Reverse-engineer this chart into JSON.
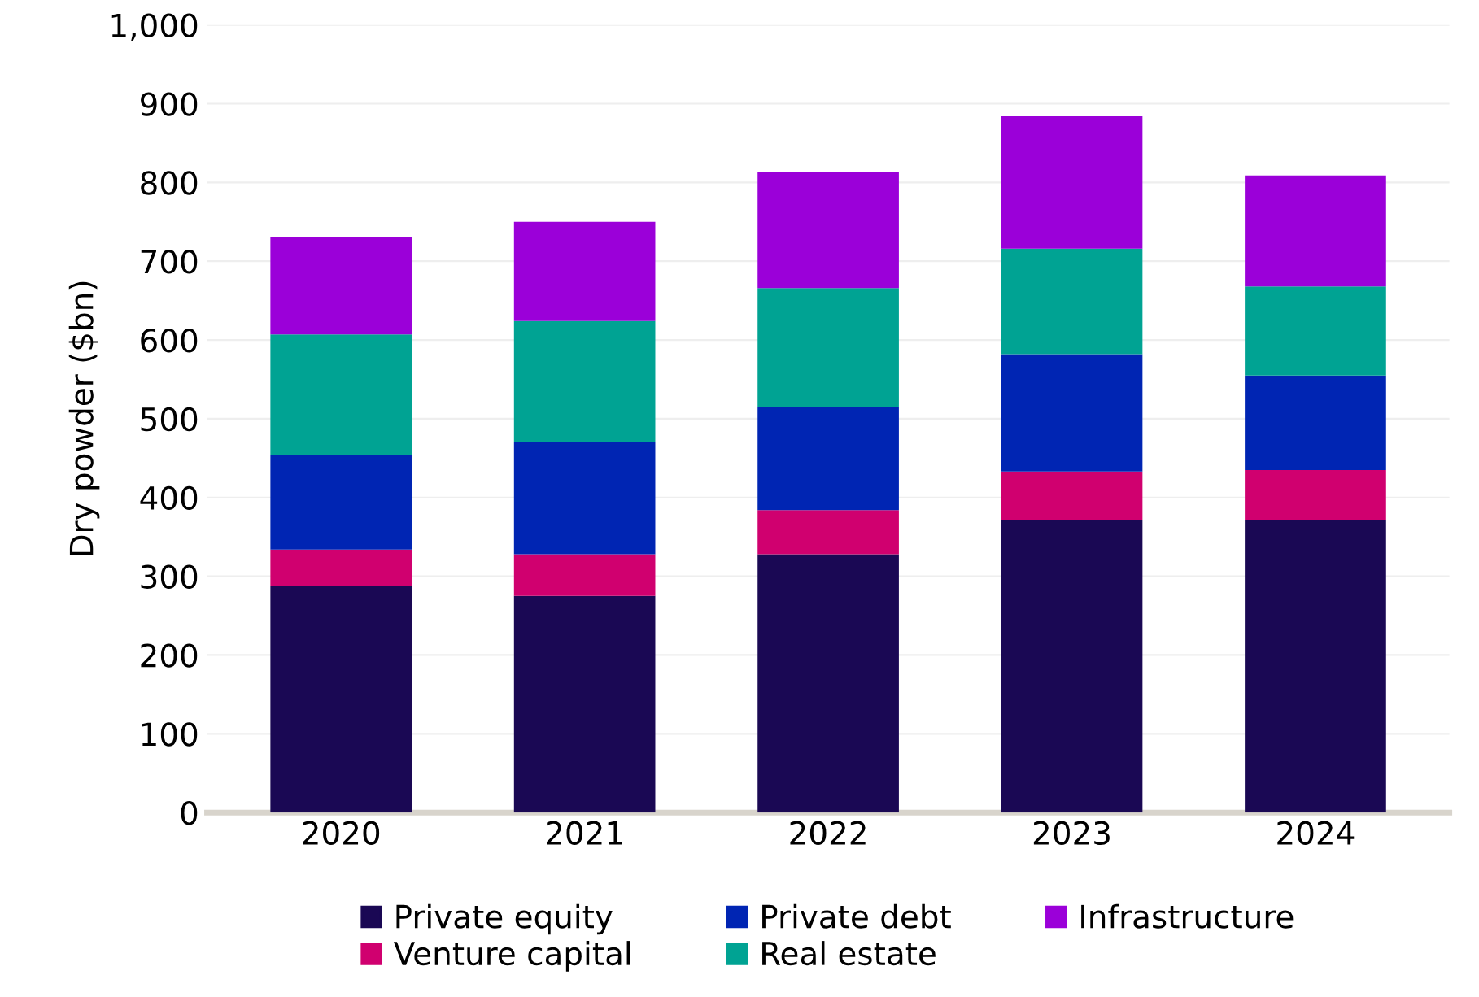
{
  "chart_data": {
    "type": "bar",
    "stacked": true,
    "ylabel": "Dry powder ($bn)",
    "categories": [
      "2020",
      "2021",
      "2022",
      "2023",
      "2024"
    ],
    "series": [
      {
        "name": "Private equity",
        "color": "#1a0854",
        "values": [
          288,
          275,
          328,
          372,
          372
        ]
      },
      {
        "name": "Venture capital",
        "color": "#d0006f",
        "values": [
          46,
          53,
          56,
          61,
          63
        ]
      },
      {
        "name": "Private debt",
        "color": "#0025b3",
        "values": [
          120,
          143,
          131,
          149,
          120
        ]
      },
      {
        "name": "Real estate",
        "color": "#00a393",
        "values": [
          153,
          153,
          151,
          134,
          113
        ]
      },
      {
        "name": "Infrastructure",
        "color": "#9b00d9",
        "values": [
          124,
          126,
          147,
          168,
          141
        ]
      }
    ],
    "ylim": [
      0,
      1000
    ],
    "yticks": [
      0,
      100,
      200,
      300,
      400,
      500,
      600,
      700,
      800,
      900,
      {
        "value": 1000,
        "label": "1,000"
      }
    ],
    "grid": "y",
    "legend": "bottom"
  }
}
